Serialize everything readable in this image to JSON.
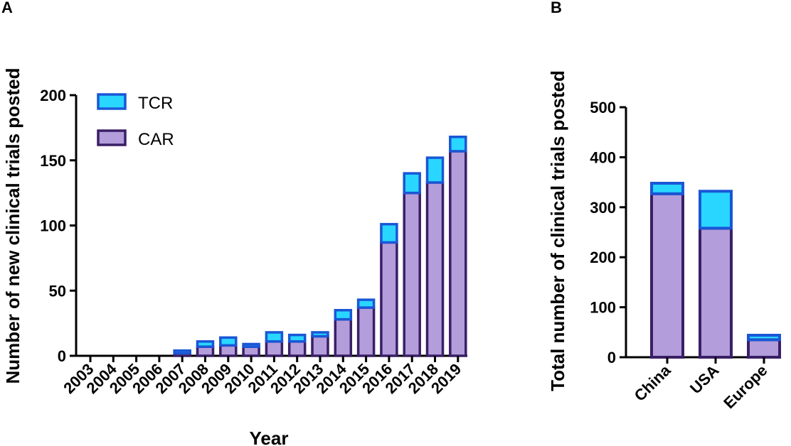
{
  "chart_data": [
    {
      "type": "bar",
      "stacked": true,
      "panel_label": "A",
      "title": "",
      "xlabel": "Year",
      "ylabel": "Number of new clinical trials posted",
      "ylim": [
        0,
        200
      ],
      "yticks": [
        "0",
        "50",
        "100",
        "150",
        "200"
      ],
      "categories": [
        "2003",
        "2004",
        "2005",
        "2006",
        "2007",
        "2008",
        "2009",
        "2010",
        "2011",
        "2012",
        "2013",
        "2014",
        "2015",
        "2016",
        "2017",
        "2018",
        "2019"
      ],
      "series": [
        {
          "name": "CAR",
          "color": "#b39ddb",
          "edge": "#3a1f66",
          "values": [
            0,
            0,
            0,
            0,
            2,
            7,
            8,
            7,
            11,
            11,
            15,
            28,
            37,
            87,
            125,
            133,
            157
          ]
        },
        {
          "name": "TCR",
          "color": "#29d6ff",
          "edge": "#1a56d6",
          "values": [
            0,
            0,
            0,
            0,
            2,
            4,
            6,
            2,
            7,
            5,
            3,
            7,
            6,
            14,
            15,
            19,
            11
          ]
        }
      ],
      "legend": {
        "position": "top-left",
        "entries": [
          "TCR",
          "CAR"
        ]
      }
    },
    {
      "type": "bar",
      "stacked": true,
      "panel_label": "B",
      "title": "",
      "xlabel": "",
      "ylabel": "Total number of clinical trials posted",
      "ylim": [
        0,
        500
      ],
      "yticks": [
        "0",
        "100",
        "200",
        "300",
        "400",
        "500"
      ],
      "categories": [
        "China",
        "USA",
        "Europe"
      ],
      "series": [
        {
          "name": "CAR",
          "color": "#b39ddb",
          "edge": "#3a1f66",
          "values": [
            327,
            258,
            35
          ]
        },
        {
          "name": "TCR",
          "color": "#29d6ff",
          "edge": "#1a56d6",
          "values": [
            21,
            74,
            9
          ]
        }
      ]
    }
  ]
}
